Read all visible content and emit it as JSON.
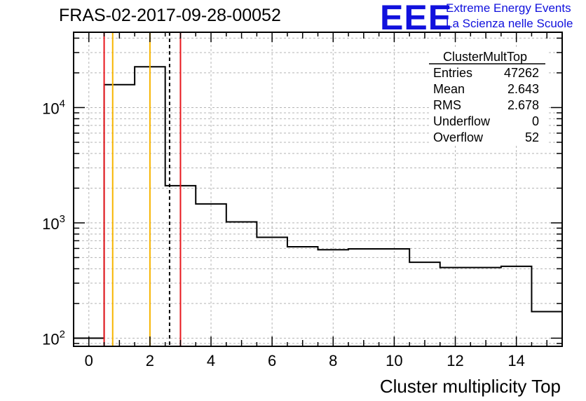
{
  "header": {
    "title": "FRAS-02-2017-09-28-00052",
    "logo_text": "EEE",
    "logo_line1": "Extreme Energy Events",
    "logo_line2": "La Scienza nelle Scuole"
  },
  "stats_box": {
    "name": "ClusterMultTop",
    "rows": [
      {
        "label": "Entries",
        "value": "47262"
      },
      {
        "label": "Mean",
        "value": "2.643"
      },
      {
        "label": "RMS",
        "value": "2.678"
      },
      {
        "label": "Underflow",
        "value": "0"
      },
      {
        "label": "Overflow",
        "value": "52"
      }
    ]
  },
  "chart_data": {
    "type": "histogram",
    "title": "FRAS-02-2017-09-28-00052",
    "xlabel": "Cluster multiplicity Top",
    "ylabel": "",
    "xlim": [
      -0.5,
      15.5
    ],
    "ylim": [
      85,
      45000
    ],
    "ylog": true,
    "grid": true,
    "bins": [
      {
        "x0": -0.5,
        "x1": 0.5,
        "y": 100
      },
      {
        "x0": 0.5,
        "x1": 1.5,
        "y": 15800
      },
      {
        "x0": 1.5,
        "x1": 2.5,
        "y": 22600
      },
      {
        "x0": 2.5,
        "x1": 3.5,
        "y": 2100
      },
      {
        "x0": 3.5,
        "x1": 4.5,
        "y": 1460
      },
      {
        "x0": 4.5,
        "x1": 5.5,
        "y": 1020
      },
      {
        "x0": 5.5,
        "x1": 6.5,
        "y": 750
      },
      {
        "x0": 6.5,
        "x1": 7.5,
        "y": 620
      },
      {
        "x0": 7.5,
        "x1": 8.5,
        "y": 585
      },
      {
        "x0": 8.5,
        "x1": 10.5,
        "y": 595
      },
      {
        "x0": 10.5,
        "x1": 11.5,
        "y": 455
      },
      {
        "x0": 11.5,
        "x1": 13.5,
        "y": 410
      },
      {
        "x0": 13.5,
        "x1": 14.5,
        "y": 420
      },
      {
        "x0": 14.5,
        "x1": 15.5,
        "y": 170
      }
    ],
    "x_ticks": [
      0,
      2,
      4,
      6,
      8,
      10,
      12,
      14
    ],
    "y_ticks": [
      {
        "value": 100,
        "base": "10",
        "exp": "2"
      },
      {
        "value": 1000,
        "base": "10",
        "exp": "3"
      },
      {
        "value": 10000,
        "base": "10",
        "exp": "4"
      }
    ],
    "vertical_lines": [
      {
        "x": 0.5,
        "color": "#e8161c",
        "style": "solid"
      },
      {
        "x": 0.78,
        "color": "#f7b500",
        "style": "solid"
      },
      {
        "x": 2.0,
        "color": "#f7b500",
        "style": "solid"
      },
      {
        "x": 2.643,
        "color": "#000000",
        "style": "dashed"
      },
      {
        "x": 3.0,
        "color": "#e8161c",
        "style": "solid"
      }
    ]
  }
}
